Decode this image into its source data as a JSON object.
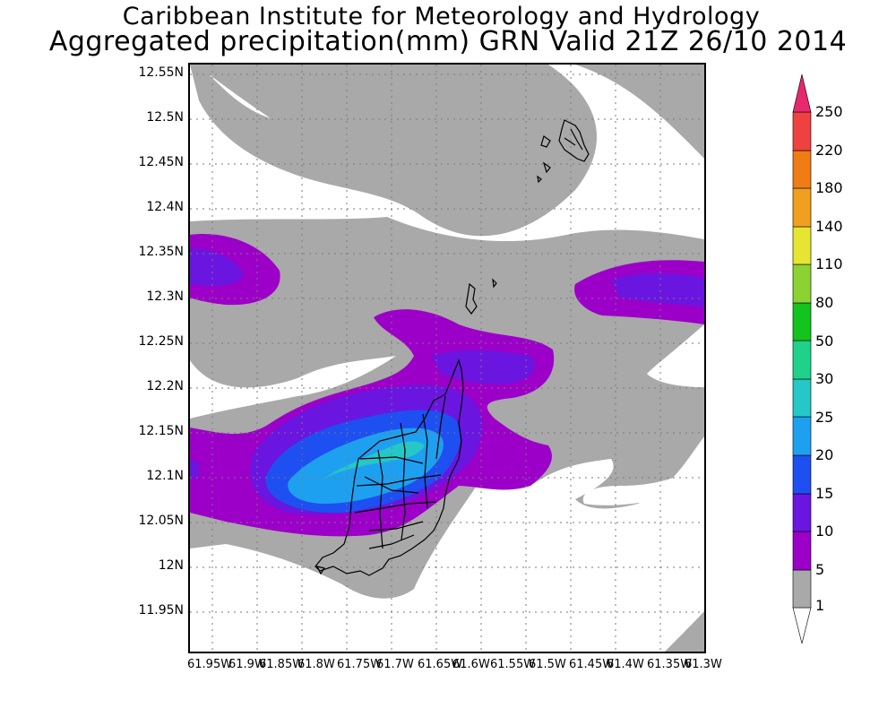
{
  "header": {
    "line1": "Caribbean Institute for Meteorology and Hydrology",
    "line2": "Aggregated precipitation(mm) GRN Valid 21Z 26/10 2014"
  },
  "map": {
    "y_ticks": [
      "12.55N",
      "12.5N",
      "12.45N",
      "12.4N",
      "12.35N",
      "12.3N",
      "12.25N",
      "12.2N",
      "12.15N",
      "12.1N",
      "12.05N",
      "12N",
      "11.95N"
    ],
    "x_ticks": [
      "61.95W",
      "61.9W",
      "61.85W",
      "61.8W",
      "61.75W",
      "61.7W",
      "61.65W",
      "61.6W",
      "61.55W",
      "61.5W",
      "61.45W",
      "61.4W",
      "61.35W",
      "61.3W"
    ]
  },
  "colorbar": {
    "labels": [
      "1",
      "5",
      "10",
      "15",
      "20",
      "25",
      "30",
      "50",
      "80",
      "110",
      "140",
      "180",
      "220",
      "250"
    ],
    "colors": [
      "#ffffff",
      "#a9a9a9",
      "#9c00c8",
      "#6a16e0",
      "#1e4ff0",
      "#1ea0f0",
      "#25c7c7",
      "#1ed28a",
      "#13c31e",
      "#8cd232",
      "#e6e632",
      "#f0a01e",
      "#f07d14",
      "#f04141",
      "#e6286e"
    ]
  },
  "legend_colors": {
    "gray": "#a9a9a9",
    "purple": "#9c00c8",
    "violet": "#6a16e0",
    "blue": "#1e4ff0",
    "cyan": "#1ea0f0",
    "teal": "#25c7c7"
  }
}
